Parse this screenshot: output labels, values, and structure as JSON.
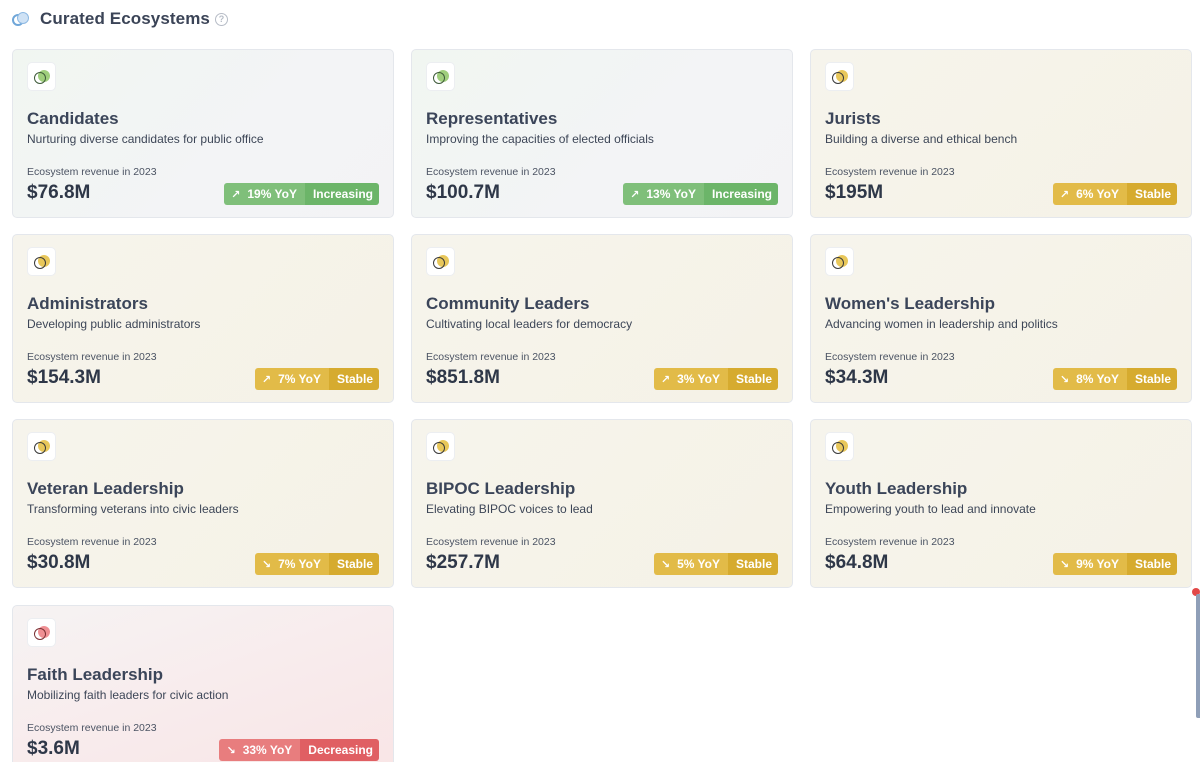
{
  "header": {
    "title": "Curated Ecosystems",
    "help": "?"
  },
  "colors": {
    "increasing": "#7fbf7a",
    "stable": "#e2bb48",
    "decreasing": "#e87d7e"
  },
  "cards": [
    {
      "name": "Candidates",
      "description": "Nurturing diverse candidates for public office",
      "revenue_label": "Ecosystem revenue in 2023",
      "revenue": "$76.8M",
      "arrow": "↗",
      "yoy": "19% YoY",
      "status": "Increasing",
      "theme": "green"
    },
    {
      "name": "Representatives",
      "description": "Improving the capacities of elected officials",
      "revenue_label": "Ecosystem revenue in 2023",
      "revenue": "$100.7M",
      "arrow": "↗",
      "yoy": "13% YoY",
      "status": "Increasing",
      "theme": "green"
    },
    {
      "name": "Jurists",
      "description": "Building a diverse and ethical bench",
      "revenue_label": "Ecosystem revenue in 2023",
      "revenue": "$195M",
      "arrow": "↗",
      "yoy": "6% YoY",
      "status": "Stable",
      "theme": "gold"
    },
    {
      "name": "Administrators",
      "description": "Developing public administrators",
      "revenue_label": "Ecosystem revenue in 2023",
      "revenue": "$154.3M",
      "arrow": "↗",
      "yoy": "7% YoY",
      "status": "Stable",
      "theme": "gold"
    },
    {
      "name": "Community Leaders",
      "description": "Cultivating local leaders for democracy",
      "revenue_label": "Ecosystem revenue in 2023",
      "revenue": "$851.8M",
      "arrow": "↗",
      "yoy": "3% YoY",
      "status": "Stable",
      "theme": "gold"
    },
    {
      "name": "Women's Leadership",
      "description": "Advancing women in leadership and politics",
      "revenue_label": "Ecosystem revenue in 2023",
      "revenue": "$34.3M",
      "arrow": "↘",
      "yoy": "8% YoY",
      "status": "Stable",
      "theme": "gold"
    },
    {
      "name": "Veteran Leadership",
      "description": "Transforming veterans into civic leaders",
      "revenue_label": "Ecosystem revenue in 2023",
      "revenue": "$30.8M",
      "arrow": "↘",
      "yoy": "7% YoY",
      "status": "Stable",
      "theme": "gold"
    },
    {
      "name": "BIPOC Leadership",
      "description": "Elevating BIPOC voices to lead",
      "revenue_label": "Ecosystem revenue in 2023",
      "revenue": "$257.7M",
      "arrow": "↘",
      "yoy": "5% YoY",
      "status": "Stable",
      "theme": "gold"
    },
    {
      "name": "Youth Leadership",
      "description": "Empowering youth to lead and innovate",
      "revenue_label": "Ecosystem revenue in 2023",
      "revenue": "$64.8M",
      "arrow": "↘",
      "yoy": "9% YoY",
      "status": "Stable",
      "theme": "gold"
    },
    {
      "name": "Faith Leadership",
      "description": "Mobilizing faith leaders for civic action",
      "revenue_label": "Ecosystem revenue in 2023",
      "revenue": "$3.6M",
      "arrow": "↘",
      "yoy": "33% YoY",
      "status": "Decreasing",
      "theme": "red"
    }
  ]
}
